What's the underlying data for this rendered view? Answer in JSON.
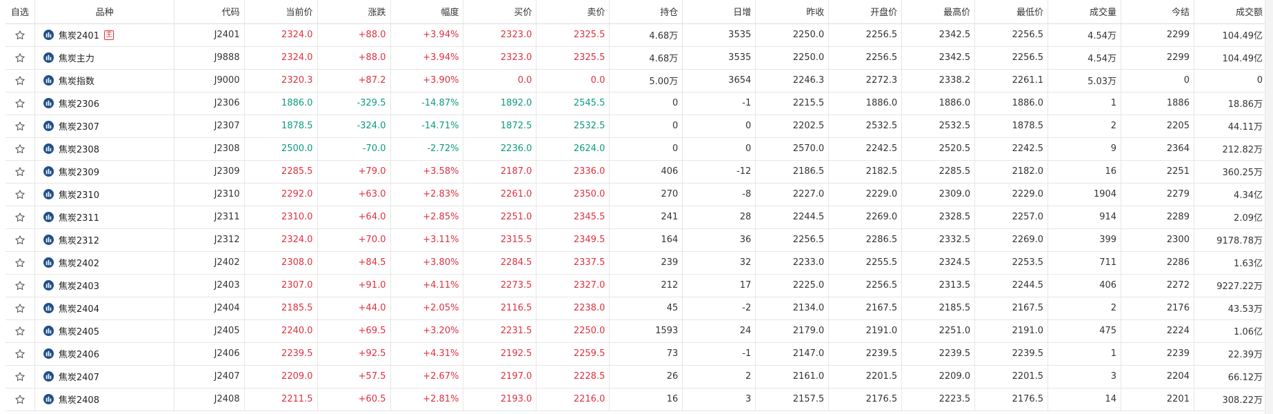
{
  "colors": {
    "up": "#e0303e",
    "down": "#0b9a80",
    "icon_blue": "#1f4e8c",
    "star": "#555555"
  },
  "columns": [
    "自选",
    "品种",
    "代码",
    "当前价",
    "涨跌",
    "幅度",
    "买价",
    "卖价",
    "持仓",
    "日增",
    "昨收",
    "开盘价",
    "最高价",
    "最低价",
    "成交量",
    "今结",
    "成交额"
  ],
  "rows": [
    {
      "name": "焦炭2401",
      "tag": "主",
      "code": "J2401",
      "price": "2324.0",
      "change": "+88.0",
      "pct": "+3.94%",
      "bid": "2323.0",
      "ask": "2325.5",
      "oi": "4.68万",
      "daily": "3535",
      "prev": "2250.0",
      "open": "2256.5",
      "high": "2342.5",
      "low": "2256.5",
      "vol": "4.54万",
      "settle": "2299",
      "amount": "104.49亿",
      "dir": "up"
    },
    {
      "name": "焦炭主力",
      "tag": "",
      "code": "J9888",
      "price": "2324.0",
      "change": "+88.0",
      "pct": "+3.94%",
      "bid": "2323.0",
      "ask": "2325.5",
      "oi": "4.68万",
      "daily": "3535",
      "prev": "2250.0",
      "open": "2256.5",
      "high": "2342.5",
      "low": "2256.5",
      "vol": "4.54万",
      "settle": "2299",
      "amount": "104.49亿",
      "dir": "up"
    },
    {
      "name": "焦炭指数",
      "tag": "",
      "code": "J9000",
      "price": "2320.3",
      "change": "+87.2",
      "pct": "+3.90%",
      "bid": "0.0",
      "ask": "0.0",
      "oi": "5.00万",
      "daily": "3654",
      "prev": "2246.3",
      "open": "2272.3",
      "high": "2338.2",
      "low": "2261.1",
      "vol": "5.03万",
      "settle": "0",
      "amount": "0",
      "dir": "up"
    },
    {
      "name": "焦炭2306",
      "tag": "",
      "code": "J2306",
      "price": "1886.0",
      "change": "-329.5",
      "pct": "-14.87%",
      "bid": "1892.0",
      "ask": "2545.5",
      "oi": "0",
      "daily": "-1",
      "prev": "2215.5",
      "open": "1886.0",
      "high": "1886.0",
      "low": "1886.0",
      "vol": "1",
      "settle": "1886",
      "amount": "18.86万",
      "dir": "down"
    },
    {
      "name": "焦炭2307",
      "tag": "",
      "code": "J2307",
      "price": "1878.5",
      "change": "-324.0",
      "pct": "-14.71%",
      "bid": "1872.5",
      "ask": "2532.5",
      "oi": "0",
      "daily": "0",
      "prev": "2202.5",
      "open": "2532.5",
      "high": "2532.5",
      "low": "1878.5",
      "vol": "2",
      "settle": "2205",
      "amount": "44.11万",
      "dir": "down"
    },
    {
      "name": "焦炭2308",
      "tag": "",
      "code": "J2308",
      "price": "2500.0",
      "change": "-70.0",
      "pct": "-2.72%",
      "bid": "2236.0",
      "ask": "2624.0",
      "oi": "0",
      "daily": "0",
      "prev": "2570.0",
      "open": "2242.5",
      "high": "2520.5",
      "low": "2242.5",
      "vol": "9",
      "settle": "2364",
      "amount": "212.82万",
      "dir": "down"
    },
    {
      "name": "焦炭2309",
      "tag": "",
      "code": "J2309",
      "price": "2285.5",
      "change": "+79.0",
      "pct": "+3.58%",
      "bid": "2187.0",
      "ask": "2336.0",
      "oi": "406",
      "daily": "-12",
      "prev": "2186.5",
      "open": "2182.5",
      "high": "2285.5",
      "low": "2182.0",
      "vol": "16",
      "settle": "2251",
      "amount": "360.25万",
      "dir": "up"
    },
    {
      "name": "焦炭2310",
      "tag": "",
      "code": "J2310",
      "price": "2292.0",
      "change": "+63.0",
      "pct": "+2.83%",
      "bid": "2261.0",
      "ask": "2350.0",
      "oi": "270",
      "daily": "-8",
      "prev": "2227.0",
      "open": "2229.0",
      "high": "2309.0",
      "low": "2229.0",
      "vol": "1904",
      "settle": "2279",
      "amount": "4.34亿",
      "dir": "up"
    },
    {
      "name": "焦炭2311",
      "tag": "",
      "code": "J2311",
      "price": "2310.0",
      "change": "+64.0",
      "pct": "+2.85%",
      "bid": "2251.0",
      "ask": "2345.5",
      "oi": "241",
      "daily": "28",
      "prev": "2244.5",
      "open": "2269.0",
      "high": "2328.5",
      "low": "2257.0",
      "vol": "914",
      "settle": "2289",
      "amount": "2.09亿",
      "dir": "up"
    },
    {
      "name": "焦炭2312",
      "tag": "",
      "code": "J2312",
      "price": "2324.0",
      "change": "+70.0",
      "pct": "+3.11%",
      "bid": "2315.5",
      "ask": "2349.5",
      "oi": "164",
      "daily": "36",
      "prev": "2256.5",
      "open": "2286.5",
      "high": "2332.5",
      "low": "2269.0",
      "vol": "399",
      "settle": "2300",
      "amount": "9178.78万",
      "dir": "up"
    },
    {
      "name": "焦炭2402",
      "tag": "",
      "code": "J2402",
      "price": "2308.0",
      "change": "+84.5",
      "pct": "+3.80%",
      "bid": "2284.5",
      "ask": "2337.5",
      "oi": "239",
      "daily": "32",
      "prev": "2233.0",
      "open": "2255.5",
      "high": "2324.5",
      "low": "2253.5",
      "vol": "711",
      "settle": "2286",
      "amount": "1.63亿",
      "dir": "up"
    },
    {
      "name": "焦炭2403",
      "tag": "",
      "code": "J2403",
      "price": "2307.0",
      "change": "+91.0",
      "pct": "+4.11%",
      "bid": "2273.5",
      "ask": "2327.0",
      "oi": "212",
      "daily": "17",
      "prev": "2225.0",
      "open": "2256.5",
      "high": "2313.5",
      "low": "2244.5",
      "vol": "406",
      "settle": "2272",
      "amount": "9227.22万",
      "dir": "up"
    },
    {
      "name": "焦炭2404",
      "tag": "",
      "code": "J2404",
      "price": "2185.5",
      "change": "+44.0",
      "pct": "+2.05%",
      "bid": "2116.5",
      "ask": "2238.0",
      "oi": "45",
      "daily": "-2",
      "prev": "2134.0",
      "open": "2167.5",
      "high": "2185.5",
      "low": "2167.5",
      "vol": "2",
      "settle": "2176",
      "amount": "43.53万",
      "dir": "up"
    },
    {
      "name": "焦炭2405",
      "tag": "",
      "code": "J2405",
      "price": "2240.0",
      "change": "+69.5",
      "pct": "+3.20%",
      "bid": "2231.5",
      "ask": "2250.0",
      "oi": "1593",
      "daily": "24",
      "prev": "2179.0",
      "open": "2191.0",
      "high": "2251.0",
      "low": "2191.0",
      "vol": "475",
      "settle": "2224",
      "amount": "1.06亿",
      "dir": "up"
    },
    {
      "name": "焦炭2406",
      "tag": "",
      "code": "J2406",
      "price": "2239.5",
      "change": "+92.5",
      "pct": "+4.31%",
      "bid": "2192.5",
      "ask": "2259.5",
      "oi": "73",
      "daily": "-1",
      "prev": "2147.0",
      "open": "2239.5",
      "high": "2239.5",
      "low": "2239.5",
      "vol": "1",
      "settle": "2239",
      "amount": "22.39万",
      "dir": "up"
    },
    {
      "name": "焦炭2407",
      "tag": "",
      "code": "J2407",
      "price": "2209.0",
      "change": "+57.5",
      "pct": "+2.67%",
      "bid": "2197.0",
      "ask": "2228.5",
      "oi": "26",
      "daily": "2",
      "prev": "2161.0",
      "open": "2201.5",
      "high": "2209.0",
      "low": "2201.5",
      "vol": "3",
      "settle": "2204",
      "amount": "66.12万",
      "dir": "up"
    },
    {
      "name": "焦炭2408",
      "tag": "",
      "code": "J2408",
      "price": "2211.5",
      "change": "+60.5",
      "pct": "+2.81%",
      "bid": "2193.0",
      "ask": "2216.0",
      "oi": "16",
      "daily": "3",
      "prev": "2157.5",
      "open": "2176.5",
      "high": "2223.5",
      "low": "2176.5",
      "vol": "14",
      "settle": "2201",
      "amount": "308.22万",
      "dir": "up"
    }
  ]
}
